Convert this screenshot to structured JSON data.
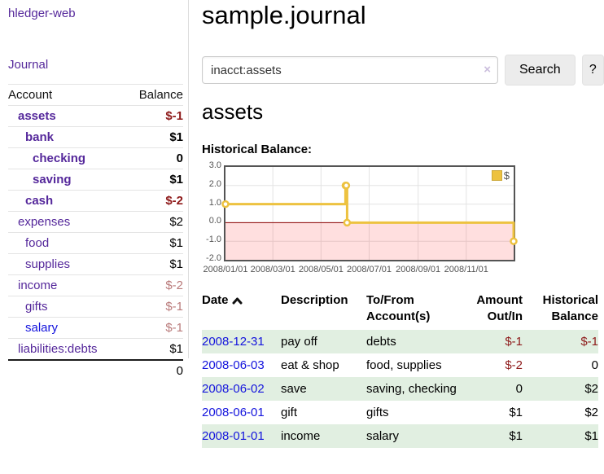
{
  "app_title": "hledger-web",
  "nav": {
    "journal_label": "Journal"
  },
  "sidebar": {
    "accounts_table": {
      "headers": {
        "account": "Account",
        "balance": "Balance"
      },
      "rows": [
        {
          "name": "assets",
          "balance": "$-1"
        },
        {
          "name": "bank",
          "balance": "$1"
        },
        {
          "name": "checking",
          "balance": "0"
        },
        {
          "name": "saving",
          "balance": "$1"
        },
        {
          "name": "cash",
          "balance": "$-2"
        },
        {
          "name": "expenses",
          "balance": "$2"
        },
        {
          "name": "food",
          "balance": "$1"
        },
        {
          "name": "supplies",
          "balance": "$1"
        },
        {
          "name": "income",
          "balance": "$-2"
        },
        {
          "name": "gifts",
          "balance": "$-1"
        },
        {
          "name": "salary",
          "balance": "$-1"
        },
        {
          "name": "liabilities:debts",
          "balance": "$1"
        }
      ],
      "total": "0"
    }
  },
  "header": {
    "title": "sample.journal"
  },
  "search": {
    "value": "inacct:assets",
    "clear_icon": "×",
    "search_label": "Search",
    "help_label": "?"
  },
  "account_page": {
    "title": "assets",
    "chart_label": "Historical Balance:"
  },
  "chart_data": {
    "type": "line",
    "step": true,
    "title": "Historical Balance",
    "series": [
      {
        "name": "$",
        "color": "#edc240",
        "points": [
          [
            "2008-01-01",
            1.0
          ],
          [
            "2008-06-01",
            2.0
          ],
          [
            "2008-06-02",
            2.0
          ],
          [
            "2008-06-03",
            0.0
          ],
          [
            "2008-12-31",
            -1.0
          ]
        ]
      }
    ],
    "x_range": [
      "2008-01-01",
      "2008-12-31"
    ],
    "ylim": [
      -2.0,
      3.0
    ],
    "yticks": [
      3.0,
      2.0,
      1.0,
      0.0,
      -1.0,
      -2.0
    ],
    "ytick_labels": [
      "3.0",
      "2.0",
      "1.0",
      "0.0",
      "-1.0",
      "-2.0"
    ],
    "xticks": [
      {
        "date": "2008-01-01",
        "label": "2008/01/01"
      },
      {
        "date": "2008-03-01",
        "label": "2008/03/01"
      },
      {
        "date": "2008-05-01",
        "label": "2008/05/01"
      },
      {
        "date": "2008-07-01",
        "label": "2008/07/01"
      },
      {
        "date": "2008-09-01",
        "label": "2008/09/01"
      },
      {
        "date": "2008-11-01",
        "label": "2008/11/01"
      }
    ],
    "legend": {
      "label": "$",
      "position": "top-right"
    },
    "grid": true,
    "negative_region_color": "rgba(255,40,40,0.15)",
    "zero_line_color": "#8b0000",
    "sort_icon": "chevron-up"
  },
  "transactions": {
    "headers": {
      "date": "Date",
      "description": "Description",
      "tofrom": "To/From Account(s)",
      "amount": "Amount Out/In",
      "balance": "Historical Balance"
    },
    "rows": [
      {
        "date": "2008-12-31",
        "description": "pay off",
        "accounts": "debts",
        "amount": "$-1",
        "balance": "$-1"
      },
      {
        "date": "2008-06-03",
        "description": "eat & shop",
        "accounts": "food, supplies",
        "amount": "$-2",
        "balance": "0"
      },
      {
        "date": "2008-06-02",
        "description": "save",
        "accounts": "saving, checking",
        "amount": "0",
        "balance": "$2"
      },
      {
        "date": "2008-06-01",
        "description": "gift",
        "accounts": "gifts",
        "amount": "$1",
        "balance": "$2"
      },
      {
        "date": "2008-01-01",
        "description": "income",
        "accounts": "salary",
        "amount": "$1",
        "balance": "$1"
      }
    ]
  }
}
